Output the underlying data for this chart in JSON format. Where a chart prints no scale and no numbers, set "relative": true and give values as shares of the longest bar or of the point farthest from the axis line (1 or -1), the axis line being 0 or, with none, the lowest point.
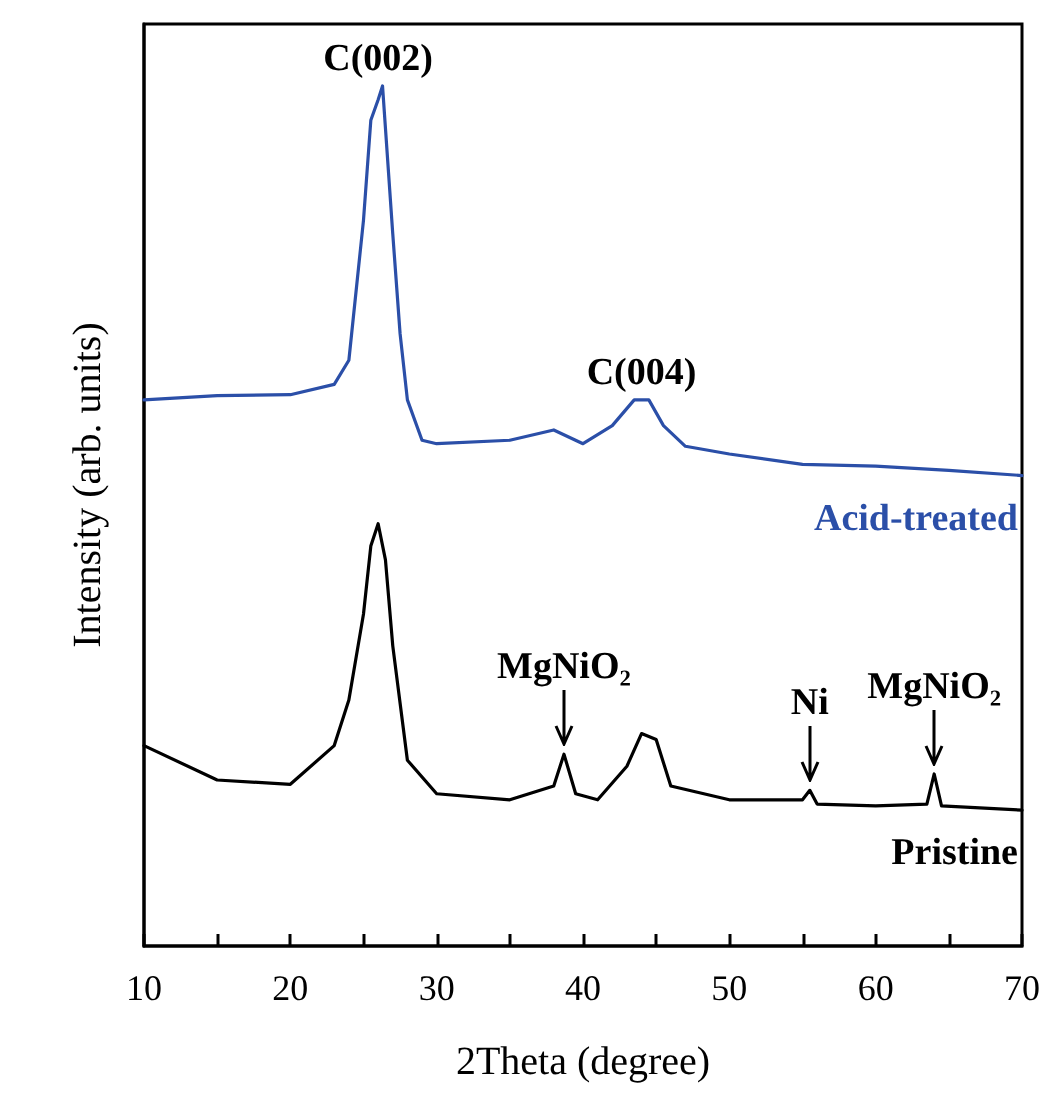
{
  "chart_data": {
    "type": "line",
    "relative": true,
    "xlabel": "2Theta (degree)",
    "ylabel": "Intensity (arb. units)",
    "xlim": [
      10,
      70
    ],
    "xticks": [
      10,
      {
        "value": 15,
        "label": null
      },
      20,
      {
        "value": 25,
        "label": null
      },
      30,
      {
        "value": 35,
        "label": null
      },
      40,
      {
        "value": 45,
        "label": null
      },
      50,
      {
        "value": 55,
        "label": null
      },
      60,
      {
        "value": 65,
        "label": null
      },
      70
    ],
    "tick_labels": "x",
    "grid": false,
    "legend": false,
    "marker": "none",
    "line_style": "solid",
    "series": [
      {
        "name": "Acid-treated",
        "color": "#2b4fa8",
        "x": [
          10,
          15,
          20,
          23,
          24,
          25,
          25.5,
          26,
          26.3,
          27,
          27.5,
          28,
          29,
          30,
          35,
          38,
          40,
          42,
          43.5,
          44.5,
          45.5,
          47,
          50,
          55,
          60,
          65,
          70
        ],
        "values": [
          0.635,
          0.64,
          0.641,
          0.653,
          0.681,
          0.844,
          0.96,
          0.984,
          1.0,
          0.828,
          0.712,
          0.635,
          0.588,
          0.584,
          0.588,
          0.6,
          0.584,
          0.605,
          0.635,
          0.635,
          0.605,
          0.581,
          0.572,
          0.56,
          0.558,
          0.553,
          0.547
        ]
      },
      {
        "name": "Pristine",
        "color": "#000000",
        "x": [
          10,
          15,
          20,
          23,
          24,
          25,
          25.5,
          26,
          26.5,
          27,
          28,
          30,
          35,
          38,
          38.7,
          39.5,
          41,
          43,
          44,
          45,
          46,
          50,
          55,
          55.5,
          56,
          60,
          63.5,
          64,
          64.5,
          70
        ],
        "values": [
          0.233,
          0.193,
          0.188,
          0.233,
          0.286,
          0.386,
          0.465,
          0.491,
          0.449,
          0.349,
          0.216,
          0.177,
          0.17,
          0.186,
          0.223,
          0.177,
          0.17,
          0.209,
          0.247,
          0.24,
          0.186,
          0.17,
          0.17,
          0.181,
          0.165,
          0.163,
          0.165,
          0.2,
          0.163,
          0.158
        ]
      }
    ],
    "annotations": [
      {
        "text": "C(002)",
        "x": 26,
        "y": 1.0
      },
      {
        "text": "C(004)",
        "x": 44,
        "y": 0.635
      },
      {
        "text": "MgNiO₂",
        "x": 38.7,
        "y": 0.223
      },
      {
        "text": "Ni",
        "x": 55.5,
        "y": 0.181
      },
      {
        "text": "MgNiO₂",
        "x": 64,
        "y": 0.2
      }
    ]
  }
}
